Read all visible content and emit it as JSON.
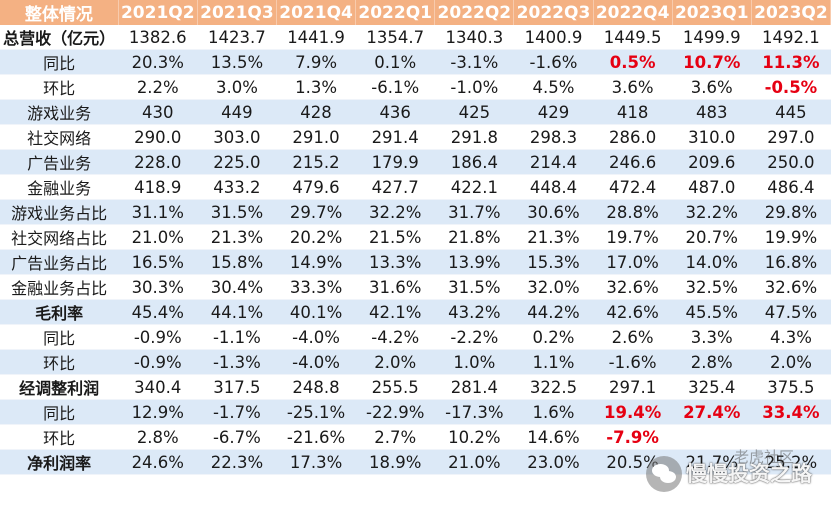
{
  "header": {
    "label": "整体情况",
    "quarters": [
      "2021Q2",
      "2021Q3",
      "2021Q4",
      "2022Q1",
      "2022Q2",
      "2022Q3",
      "2022Q4",
      "2023Q1",
      "2023Q2"
    ]
  },
  "rows": [
    {
      "label": "总营收（亿元）",
      "values": [
        "1382.6",
        "1423.7",
        "1441.9",
        "1354.7",
        "1340.3",
        "1400.9",
        "1449.5",
        "1499.9",
        "1492.1"
      ]
    },
    {
      "label": "同比",
      "values": [
        "20.3%",
        "13.5%",
        "7.9%",
        "0.1%",
        "-3.1%",
        "-1.6%",
        "0.5%",
        "10.7%",
        "11.3%"
      ]
    },
    {
      "label": "环比",
      "values": [
        "2.2%",
        "3.0%",
        "1.3%",
        "-6.1%",
        "-1.0%",
        "4.5%",
        "3.6%",
        "3.6%",
        "-0.5%"
      ]
    },
    {
      "label": "游戏业务",
      "values": [
        "430",
        "449",
        "428",
        "436",
        "425",
        "429",
        "418",
        "483",
        "445"
      ]
    },
    {
      "label": "社交网络",
      "values": [
        "290.0",
        "303.0",
        "291.0",
        "291.4",
        "291.8",
        "298.3",
        "286.0",
        "310.0",
        "297.0"
      ]
    },
    {
      "label": "广告业务",
      "values": [
        "228.0",
        "225.0",
        "215.2",
        "179.9",
        "186.4",
        "214.4",
        "246.6",
        "209.6",
        "250.0"
      ]
    },
    {
      "label": "金融业务",
      "values": [
        "418.9",
        "433.2",
        "479.6",
        "427.7",
        "422.1",
        "448.4",
        "472.4",
        "487.0",
        "486.4"
      ]
    },
    {
      "label": "游戏业务占比",
      "values": [
        "31.1%",
        "31.5%",
        "29.7%",
        "32.2%",
        "31.7%",
        "30.6%",
        "28.8%",
        "32.2%",
        "29.8%"
      ]
    },
    {
      "label": "社交网络占比",
      "values": [
        "21.0%",
        "21.3%",
        "20.2%",
        "21.5%",
        "21.8%",
        "21.3%",
        "19.7%",
        "20.7%",
        "19.9%"
      ]
    },
    {
      "label": "广告业务占比",
      "values": [
        "16.5%",
        "15.8%",
        "14.9%",
        "13.3%",
        "13.9%",
        "15.3%",
        "17.0%",
        "14.0%",
        "16.8%"
      ]
    },
    {
      "label": "金融业务占比",
      "values": [
        "30.3%",
        "30.4%",
        "33.3%",
        "31.6%",
        "31.5%",
        "32.0%",
        "32.6%",
        "32.5%",
        "32.6%"
      ]
    },
    {
      "label": "毛利率",
      "values": [
        "45.4%",
        "44.1%",
        "40.1%",
        "42.1%",
        "43.2%",
        "44.2%",
        "42.6%",
        "45.5%",
        "47.5%"
      ]
    },
    {
      "label": "同比",
      "values": [
        "-0.9%",
        "-1.1%",
        "-4.0%",
        "-4.2%",
        "-2.2%",
        "0.2%",
        "2.6%",
        "3.3%",
        "4.3%"
      ]
    },
    {
      "label": "环比",
      "values": [
        "-0.9%",
        "-1.3%",
        "-4.0%",
        "2.0%",
        "1.0%",
        "1.1%",
        "-1.6%",
        "2.8%",
        "2.0%"
      ]
    },
    {
      "label": "经调整利润",
      "values": [
        "340.4",
        "317.5",
        "248.8",
        "255.5",
        "281.4",
        "322.5",
        "297.1",
        "325.4",
        "375.5"
      ]
    },
    {
      "label": "同比",
      "values": [
        "12.9%",
        "-1.7%",
        "-25.1%",
        "-22.9%",
        "-17.3%",
        "1.6%",
        "19.4%",
        "27.4%",
        "33.4%"
      ]
    },
    {
      "label": "环比",
      "values": [
        "2.8%",
        "-6.7%",
        "-21.6%",
        "2.7%",
        "10.2%",
        "14.6%",
        "-7.9%",
        "",
        ""
      ]
    },
    {
      "label": "净利润率",
      "values": [
        "24.6%",
        "22.3%",
        "17.3%",
        "18.9%",
        "21.0%",
        "23.0%",
        "20.5%",
        "21.7%",
        "25.2%"
      ]
    }
  ],
  "highlight_color": "#e60012",
  "header_color": "#f4b183",
  "band_color": "#dce9f7",
  "watermark": {
    "top_text": "老虎社区",
    "main_text": "慢慢投资之路",
    "icon": "wechat-icon"
  }
}
